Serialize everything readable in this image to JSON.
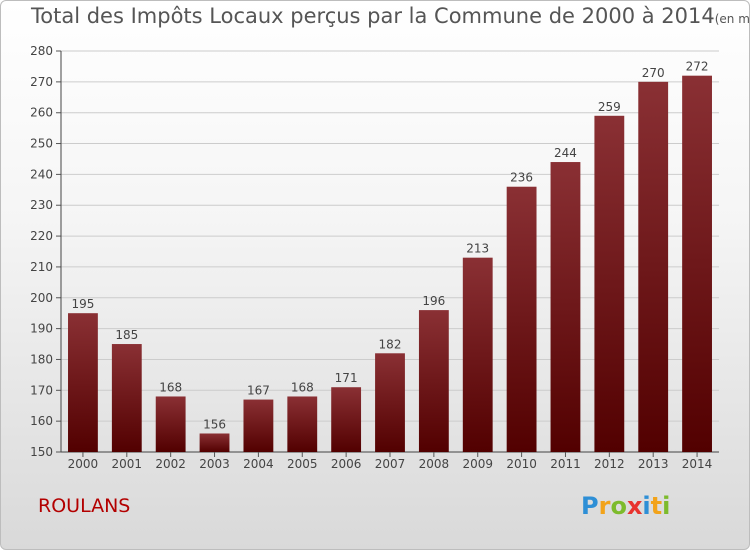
{
  "title": "Total des Impôts Locaux perçus par la Commune de 2000 à 2014",
  "subtitle": "(en milliers d'€)",
  "commune_name": "ROULANS",
  "logo": {
    "letters": [
      "P",
      "r",
      "o",
      "x",
      "i",
      "t",
      "i"
    ],
    "colors": [
      "#2e8fd6",
      "#f2a31a",
      "#7dbb2c",
      "#e8332e",
      "#2e8fd6",
      "#f2a31a",
      "#7dbb2c"
    ]
  },
  "colors": {
    "bar_top": "#8a3034",
    "bar_bottom": "#520000",
    "grid": "#cccccc"
  },
  "chart_data": {
    "type": "bar",
    "categories": [
      "2000",
      "2001",
      "2002",
      "2003",
      "2004",
      "2005",
      "2006",
      "2007",
      "2008",
      "2009",
      "2010",
      "2011",
      "2012",
      "2013",
      "2014"
    ],
    "values": [
      195,
      185,
      168,
      156,
      167,
      168,
      171,
      182,
      196,
      213,
      236,
      244,
      259,
      270,
      272
    ],
    "ylim": [
      150,
      280
    ],
    "yticks": [
      150,
      160,
      170,
      180,
      190,
      200,
      210,
      220,
      230,
      240,
      250,
      260,
      270,
      280
    ],
    "grid": true,
    "data_labels": true
  }
}
